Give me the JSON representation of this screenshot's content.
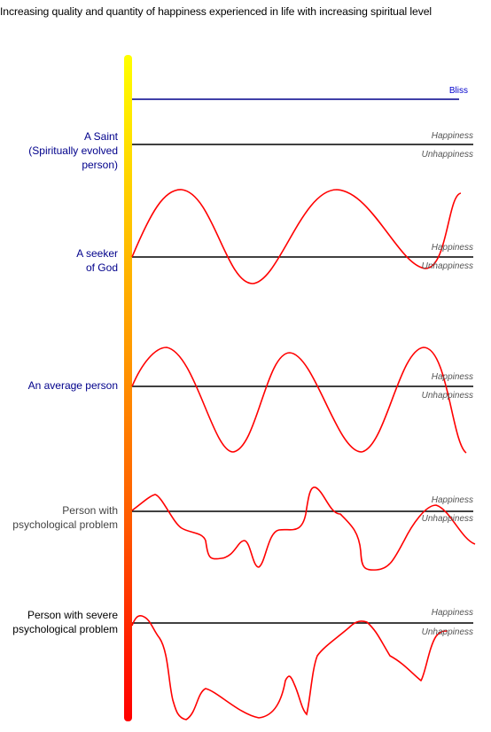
{
  "title": "Increasing quality and quantity of happiness experienced in life with increasing spiritual level",
  "bliss_label": "Bliss",
  "happiness_label": "Happiness",
  "unhappiness_label": "Unhappiness",
  "levels": [
    {
      "lines": [
        "A Saint",
        "(Spiritually evolved",
        "person)"
      ]
    },
    {
      "lines": [
        "A seeker",
        "of God"
      ]
    },
    {
      "lines": [
        "An average person"
      ]
    },
    {
      "lines": [
        "Person with",
        "psychological problem"
      ]
    },
    {
      "lines": [
        "Person with severe",
        "psychological problem"
      ]
    }
  ],
  "colors": {
    "bliss_line": "#00008b",
    "wave": "#ff0000",
    "baseline": "#000000",
    "label_blue": "#00008b"
  }
}
